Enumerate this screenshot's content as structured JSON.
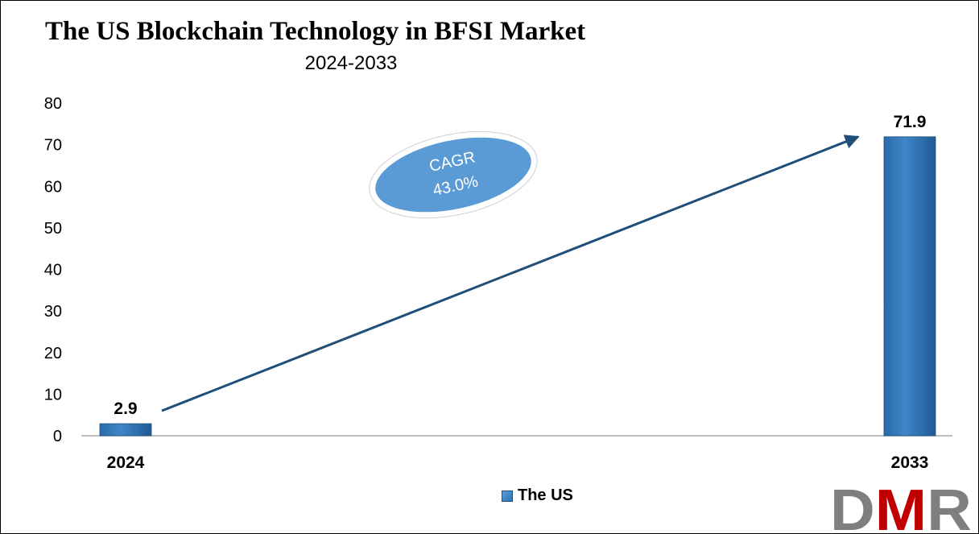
{
  "chart_data": {
    "type": "bar",
    "title": "The US Blockchain Technology in BFSI Market",
    "subtitle": "2024-2033",
    "categories": [
      "2024",
      "2033"
    ],
    "series": [
      {
        "name": "The US",
        "values": [
          2.9,
          71.9
        ],
        "color": "#2e75b6"
      }
    ],
    "data_labels": [
      "2.9",
      "71.9"
    ],
    "ylim": [
      0,
      80
    ],
    "yticks": [
      0,
      10,
      20,
      30,
      40,
      50,
      60,
      70,
      80
    ],
    "grid": false,
    "legend_position": "bottom",
    "annotation": {
      "line1": "CAGR",
      "line2": "43.0%",
      "color": "#5b9bd5"
    },
    "trend_arrow": {
      "from": [
        2024,
        6.0
      ],
      "to": [
        2033,
        71.9
      ],
      "color": "#1f4e79"
    }
  },
  "logo": {
    "text": "DMR",
    "colors": [
      "#7f7f7f",
      "#c00000"
    ]
  }
}
